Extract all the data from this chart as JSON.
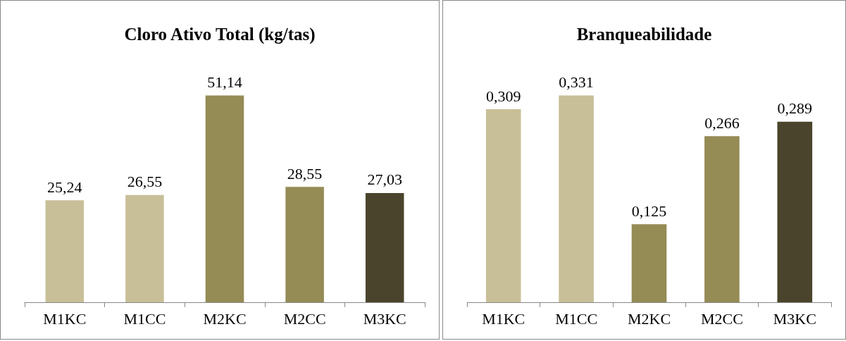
{
  "chart_data": [
    {
      "type": "bar",
      "title": "Cloro Ativo Total (kg/tas)",
      "categories": [
        "M1KC",
        "M1CC",
        "M2KC",
        "M2CC",
        "M3KC"
      ],
      "values": [
        25.24,
        26.55,
        51.14,
        28.55,
        27.03
      ],
      "colors": [
        "#c8bf98",
        "#c8bf98",
        "#958b55",
        "#958b55",
        "#4a442c"
      ],
      "value_labels": [
        "25,24",
        "26,55",
        "51,14",
        "28,55",
        "27,03"
      ]
    },
    {
      "type": "bar",
      "title": "Branqueabilidade",
      "categories": [
        "M1KC",
        "M1CC",
        "M2KC",
        "M2CC",
        "M3KC"
      ],
      "values": [
        0.309,
        0.331,
        0.125,
        0.266,
        0.289
      ],
      "colors": [
        "#c8bf98",
        "#c8bf98",
        "#958b55",
        "#958b55",
        "#4a442c"
      ],
      "value_labels": [
        "0,309",
        "0,331",
        "0,125",
        "0,266",
        "0,289"
      ]
    }
  ]
}
